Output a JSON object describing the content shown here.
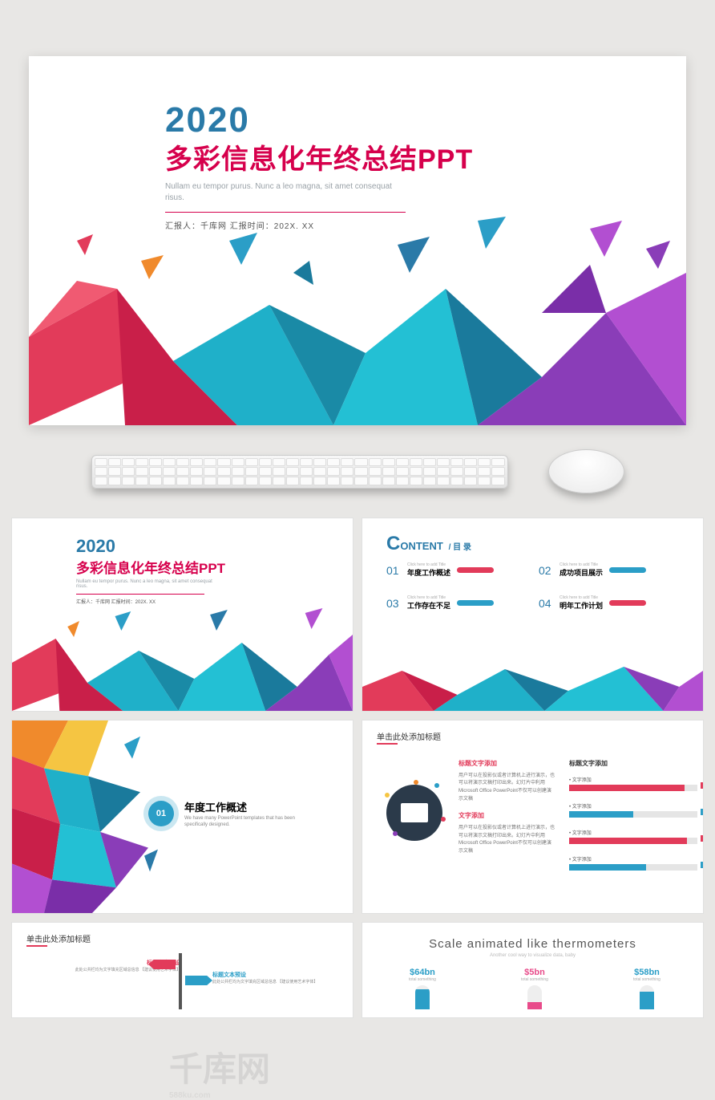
{
  "colors": {
    "teal": "#2b9ec7",
    "teal_dark": "#1a7a9c",
    "red": "#e23b5a",
    "magenta": "#d6004c",
    "pink": "#e84b8a",
    "purple": "#8a3db8",
    "violet": "#b24fd1",
    "orange": "#f08a2c",
    "blue": "#2a7aa8",
    "navy": "#2b3a4a",
    "yellow": "#f5c542"
  },
  "hero": {
    "year": "2020",
    "year_color": "#2a7aa8",
    "title": "多彩信息化年终总结PPT",
    "title_color": "#d6004c",
    "subtitle": "Nullam eu tempor purus.  Nunc a leo magna, sit amet consequat risus.",
    "meta": "汇报人：千库网   汇报时间：202X. XX"
  },
  "watermark": {
    "logo": "千库网",
    "url": "588ku.com"
  },
  "slide2": {
    "heading_c": "C",
    "heading_rest": "ONTENT",
    "heading_cn": " / 目 录",
    "items": [
      {
        "num": "01",
        "click": "Click here to add Title",
        "label": "年度工作概述",
        "bar_color": "#e23b5a"
      },
      {
        "num": "02",
        "click": "Click here to add Title",
        "label": "成功项目展示",
        "bar_color": "#2b9ec7"
      },
      {
        "num": "03",
        "click": "Click here to add Title",
        "label": "工作存在不足",
        "bar_color": "#2b9ec7"
      },
      {
        "num": "04",
        "click": "Click here to add Title",
        "label": "明年工作计划",
        "bar_color": "#e23b5a"
      }
    ]
  },
  "slide3": {
    "num": "01",
    "num_bg": "#2b9ec7",
    "title": "年度工作概述",
    "subtitle": "We have many PowerPoint templates that has been specifically designed."
  },
  "slide4": {
    "header": "单击此处添加标题",
    "accent": "#e23b5a",
    "col1_t1": "标题文字添加",
    "col1_t1_color": "#e23b5a",
    "col1_p1": "用户可以在投影仪或者计算机上进行演示，也可以将演示文稿打印出来。幻灯片中利用 Microsoft Office PowerPoint不仅可以创建演示文稿",
    "col1_t2": "文字添加",
    "col1_t2_color": "#e23b5a",
    "col1_p2": "用户可以在投影仪或者计算机上进行演示，也可以将演示文稿打印出来。幻灯片中利用 Microsoft Office PowerPoint不仅可以创建演示文稿",
    "col2_title": "标题文字添加",
    "bars": [
      {
        "label": "文字添加",
        "pct": 90,
        "color": "#e23b5a"
      },
      {
        "label": "文字添加",
        "pct": 50,
        "color": "#2b9ec7"
      },
      {
        "label": "文字添加",
        "pct": 92,
        "color": "#e23b5a"
      },
      {
        "label": "文字添加",
        "pct": 60,
        "color": "#2b9ec7"
      }
    ],
    "dots": [
      "#f5c542",
      "#2b9ec7",
      "#e23b5a",
      "#8a3db8",
      "#f08a2c"
    ]
  },
  "slide5": {
    "header": "单击此处添加标题",
    "accent": "#e23b5a",
    "left_title": "标题文本预设",
    "left_title_color": "#e23b5a",
    "left_text": "此处公共栏均为文字填充区域总信息\\n【建议使用艺术字体】",
    "right_title": "标题文本预设",
    "right_title_color": "#2b9ec7",
    "right_text": "此处公共栏均为文字填充区域总信息\\n【建议使用艺术字体】",
    "sign_left_color": "#e23b5a",
    "sign_right_color": "#2b9ec7"
  },
  "slide6": {
    "title": "Scale animated like thermometers",
    "subtitle": "Another cool way to visualize data, baby",
    "items": [
      {
        "value": "$64bn",
        "label": "total something",
        "fill": 85,
        "color": "#2b9ec7"
      },
      {
        "value": "$5bn",
        "label": "total something",
        "fill": 30,
        "color": "#e84b8a"
      },
      {
        "value": "$58bn",
        "label": "total something",
        "fill": 75,
        "color": "#2b9ec7"
      }
    ]
  }
}
